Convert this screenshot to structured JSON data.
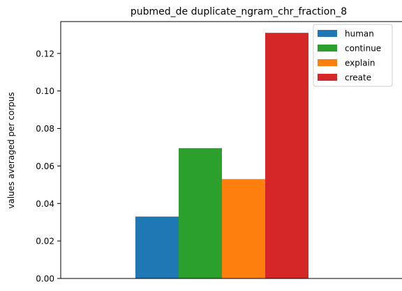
{
  "chart_data": {
    "type": "bar",
    "title": "pubmed_de duplicate_ngram_chr_fraction_8",
    "xlabel": "",
    "ylabel": "values averaged per corpus",
    "ylim": [
      0,
      0.137
    ],
    "yticks": [
      0.0,
      0.02,
      0.04,
      0.06,
      0.08,
      0.1,
      0.12
    ],
    "ytick_labels": [
      "0.00",
      "0.02",
      "0.04",
      "0.06",
      "0.08",
      "0.10",
      "0.12"
    ],
    "series": [
      {
        "name": "human",
        "value": 0.033,
        "color": "#1f77b4"
      },
      {
        "name": "continue",
        "value": 0.0695,
        "color": "#2ca02c"
      },
      {
        "name": "explain",
        "value": 0.053,
        "color": "#ff7f0e"
      },
      {
        "name": "create",
        "value": 0.131,
        "color": "#d62728"
      }
    ],
    "legend_position": "top-right",
    "grid": false
  }
}
